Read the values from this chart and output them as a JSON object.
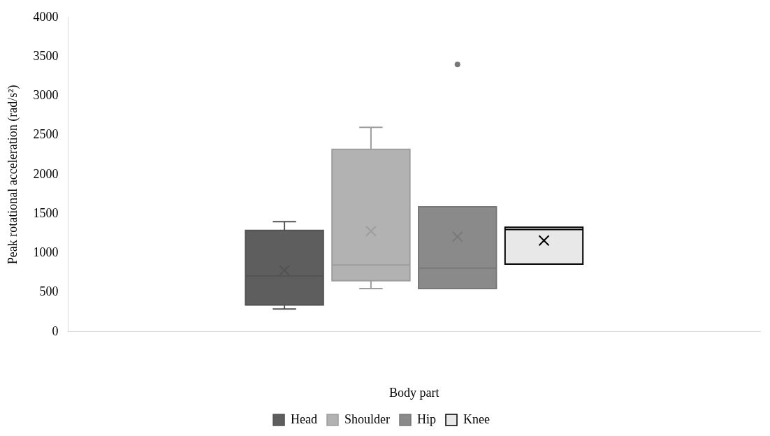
{
  "chart_data": {
    "type": "box",
    "xlabel": "Body part",
    "ylabel": "Peak rotational acceleration (rad/s²)",
    "categories": [
      null
    ],
    "ylim": [
      0,
      4000
    ],
    "yticks": [
      0,
      500,
      1000,
      1500,
      2000,
      2500,
      3000,
      3500,
      4000
    ],
    "legend": "bottom",
    "series": [
      {
        "name": "Head",
        "color": "#5e5e5e",
        "boxes": [
          {
            "low": 290,
            "q1": 340,
            "median": 710,
            "q3": 1290,
            "high": 1400,
            "mean": 780
          }
        ]
      },
      {
        "name": "Shoulder",
        "color": "#b2b2b2",
        "boxes": [
          {
            "low": 550,
            "q1": 650,
            "median": 850,
            "q3": 2320,
            "high": 2600,
            "mean": 1280
          }
        ]
      },
      {
        "name": "Hip",
        "color": "#8a8a8a",
        "boxes": [
          {
            "low": 550,
            "q1": 550,
            "median": 810,
            "q3": 1590,
            "high": 1590,
            "mean": 1210,
            "outliers": [
              3400
            ]
          }
        ]
      },
      {
        "name": "Knee",
        "color": "#e8e8e8",
        "boxes": [
          {
            "low": 860,
            "q1": 860,
            "median": 1300,
            "q3": 1330,
            "high": 1330,
            "mean": 1160
          }
        ]
      }
    ]
  }
}
